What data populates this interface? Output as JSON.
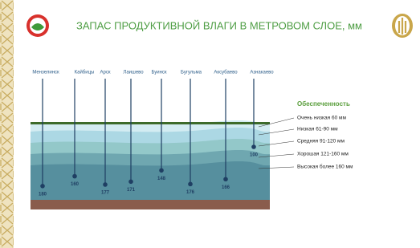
{
  "chart_data": {
    "type": "depth",
    "title": "ЗАПАС ПРОДУКТИВНОЙ ВЛАГИ В МЕТРОВОМ СЛОЕ, мм",
    "categories": [
      "Мензелинск",
      "Кайбицы",
      "Арск",
      "Лаишево",
      "Буинск",
      "Бугульма",
      "Аксубаево",
      "Азнакаево"
    ],
    "values": [
      180,
      160,
      177,
      171,
      148,
      176,
      166,
      100
    ],
    "color": "#1f3f63",
    "legend_title": "Обеспеченность",
    "legend": [
      "Очень низкая 60 мм",
      "Низкая 61-90 мм",
      "Средняя 91-120 мм",
      "Хорошая 121-160 мм",
      "Высокая более 160 мм"
    ],
    "layer_colors": [
      "#d3ecf2",
      "#acd8e4",
      "#93c8c9",
      "#6fa7b0",
      "#568f9e"
    ]
  }
}
